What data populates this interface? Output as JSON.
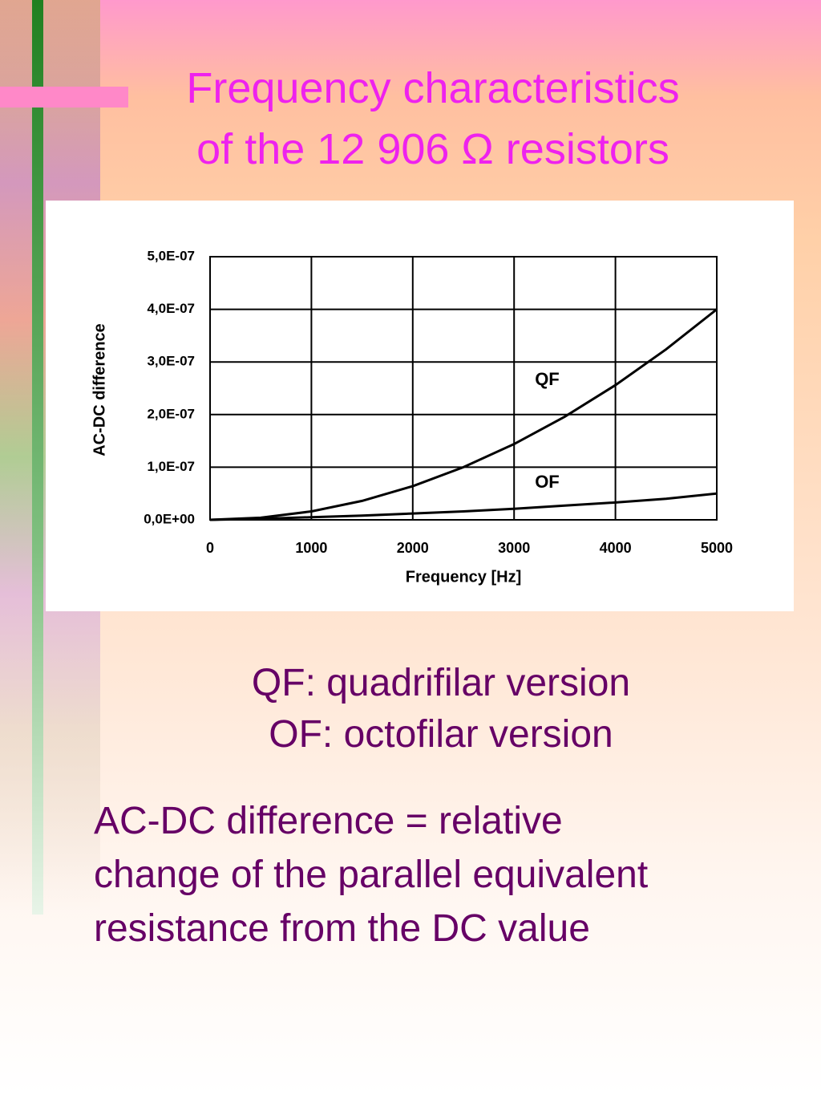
{
  "slide": {
    "title": [
      "Frequency characteristics",
      "of the 12 906 Ω resistors"
    ],
    "legend": [
      "QF: quadrifilar version",
      "OF: octofilar version"
    ],
    "note": [
      "AC-DC difference = relative",
      "change of the parallel equivalent",
      "resistance from the DC value"
    ]
  },
  "chart_data": {
    "type": "line",
    "x_label": "Frequency [Hz]",
    "y_label": "AC-DC difference",
    "x": [
      0,
      500,
      1000,
      1500,
      2000,
      2500,
      3000,
      3500,
      4000,
      4500,
      5000
    ],
    "series": [
      {
        "name": "QF",
        "color": "#000000",
        "values": [
          0,
          4e-09,
          1.6e-08,
          3.6e-08,
          6.4e-08,
          1e-07,
          1.44e-07,
          1.96e-07,
          2.56e-07,
          3.24e-07,
          4e-07
        ]
      },
      {
        "name": "OF",
        "color": "#000000",
        "values": [
          0,
          2e-09,
          5e-09,
          8e-09,
          1.2e-08,
          1.6e-08,
          2.1e-08,
          2.7e-08,
          3.3e-08,
          4e-08,
          5e-08
        ]
      }
    ],
    "xlim": [
      0,
      5000
    ],
    "xticks": [
      0,
      1000,
      2000,
      3000,
      4000,
      5000
    ],
    "ylim": [
      0,
      5e-07
    ],
    "yticks": [
      {
        "value": 0,
        "label": "0,0E+00"
      },
      {
        "value": 1e-07,
        "label": "1,0E-07"
      },
      {
        "value": 2e-07,
        "label": "2,0E-07"
      },
      {
        "value": 3e-07,
        "label": "3,0E-07"
      },
      {
        "value": 4e-07,
        "label": "4,0E-07"
      },
      {
        "value": 5e-07,
        "label": "5,0E-07"
      }
    ],
    "grid": true
  }
}
